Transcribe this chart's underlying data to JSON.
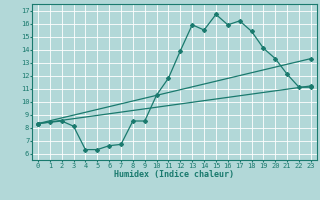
{
  "xlabel": "Humidex (Indice chaleur)",
  "background_color": "#b2d8d8",
  "grid_color": "#ffffff",
  "line_color": "#1a7a6e",
  "xlim": [
    -0.5,
    23.5
  ],
  "ylim": [
    5.5,
    17.5
  ],
  "xticks": [
    0,
    1,
    2,
    3,
    4,
    5,
    6,
    7,
    8,
    9,
    10,
    11,
    12,
    13,
    14,
    15,
    16,
    17,
    18,
    19,
    20,
    21,
    22,
    23
  ],
  "yticks": [
    6,
    7,
    8,
    9,
    10,
    11,
    12,
    13,
    14,
    15,
    16,
    17
  ],
  "line1_x": [
    0,
    1,
    2,
    3,
    4,
    5,
    6,
    7,
    8,
    9,
    10,
    11,
    12,
    13,
    14,
    15,
    16,
    17,
    18,
    19,
    20,
    21,
    22,
    23
  ],
  "line1_y": [
    8.3,
    8.4,
    8.5,
    8.1,
    6.3,
    6.3,
    6.6,
    6.7,
    8.5,
    8.5,
    10.5,
    11.8,
    13.9,
    15.9,
    15.5,
    16.7,
    15.9,
    16.2,
    15.4,
    14.1,
    13.3,
    12.1,
    11.1,
    11.1
  ],
  "line2_x": [
    0,
    23
  ],
  "line2_y": [
    8.3,
    13.3
  ],
  "line3_x": [
    0,
    23
  ],
  "line3_y": [
    8.3,
    11.2
  ],
  "marker": "D",
  "markersize": 2,
  "linewidth": 0.9,
  "tick_fontsize": 5,
  "xlabel_fontsize": 6
}
